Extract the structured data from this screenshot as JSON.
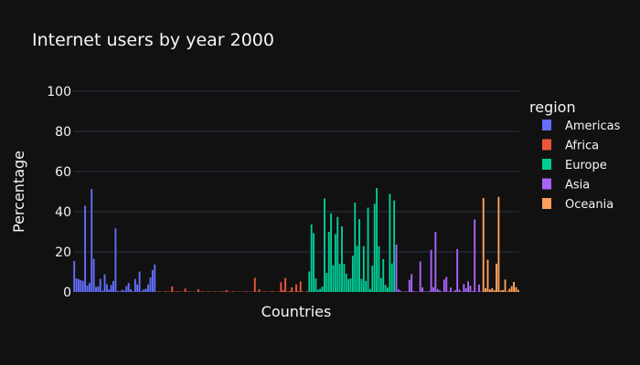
{
  "chart_data": {
    "type": "bar",
    "title": "Internet users by year 2000",
    "xlabel": "Countries",
    "ylabel": "Percentage",
    "ylim": [
      0,
      100
    ],
    "yticks": [
      "0",
      "20",
      "40",
      "60",
      "80",
      "100"
    ],
    "grid": true,
    "legend_title": "region",
    "legend_position": "right",
    "series": [
      {
        "name": "Americas",
        "color": "#636efa",
        "values": [
          15.5,
          6.8,
          6.4,
          6,
          5.5,
          43,
          3.2,
          4.5,
          51.3,
          16.5,
          2.5,
          2.8,
          6.5,
          0.6,
          8.8,
          3.9,
          1.2,
          3.5,
          5.5,
          31.7,
          0.5,
          0.3,
          1.1,
          0.7,
          2.9,
          4.5,
          1.3,
          0.4,
          6.5,
          3.8,
          10.2,
          0.5,
          1.4,
          1.6,
          3.8,
          7.2,
          11,
          13.7
        ]
      },
      {
        "name": "Africa",
        "color": "#ef553b",
        "values": [
          0.2,
          0.3,
          0.2,
          0.1,
          0.4,
          0.2,
          0.2,
          2.8,
          0.1,
          0.3,
          0.2,
          0.2,
          0.1,
          1.7,
          0.2,
          0.3,
          0.1,
          0.2,
          0.1,
          1.4,
          0.2,
          0.3,
          0.1,
          0.2,
          0.3,
          0.1,
          0.2,
          0.2,
          0.1,
          0.2,
          0.3,
          0.2,
          0.9,
          0.2,
          0.1,
          0.3,
          0.2,
          0.1,
          0.2,
          0.1,
          0.2,
          0.3,
          0.1,
          0.2,
          0.1,
          7.1,
          0.2,
          1.3,
          0.1,
          0.2,
          0.3,
          0.1,
          0.2,
          0.3,
          0.2,
          0.1,
          0.2,
          4.8,
          0.9,
          7,
          0.2,
          0.5,
          2.3,
          0.2,
          3.8,
          0.4,
          5.3,
          0.2,
          0.1,
          0.3
        ]
      },
      {
        "name": "Europe",
        "color": "#00cc96",
        "values": [
          10.2,
          33.6,
          29.3,
          6.8,
          1.2,
          1.6,
          2.7,
          46.6,
          9.5,
          30,
          39.2,
          13.3,
          28.8,
          37.4,
          14.1,
          32.7,
          13.9,
          9.1,
          6.4,
          6.8,
          18,
          44.5,
          23,
          36.3,
          6.5,
          22.8,
          5.5,
          42,
          1.5,
          13.1,
          43.9,
          51.8,
          22.8,
          7,
          16.4,
          3.5,
          2.2,
          48.9,
          14.2,
          45.6
        ]
      },
      {
        "name": "Asia",
        "color": "#ab63fa",
        "values": [
          23.6,
          1.3,
          0.6,
          0.1,
          0.3,
          0.2,
          6,
          8.9,
          0.4,
          0.2,
          0.2,
          15.2,
          2.3,
          0.3,
          0.2,
          0.4,
          21,
          2.4,
          29.9,
          1.5,
          0.8,
          0.2,
          6.2,
          7.5,
          0.3,
          2.2,
          0.2,
          0.9,
          21.4,
          1.2,
          0.2,
          3.9,
          1.9,
          5.3,
          3.1,
          0.4,
          36.1,
          0.2,
          3.7,
          0.2
        ]
      },
      {
        "name": "Oceania",
        "color": "#ffa15a",
        "values": [
          46.8,
          1.9,
          16.1,
          1.3,
          1.9,
          0.9,
          14.1,
          47.4,
          0.8,
          1,
          6.2,
          0.3,
          1.6,
          2.9,
          5,
          2.4,
          1.1
        ]
      }
    ]
  }
}
